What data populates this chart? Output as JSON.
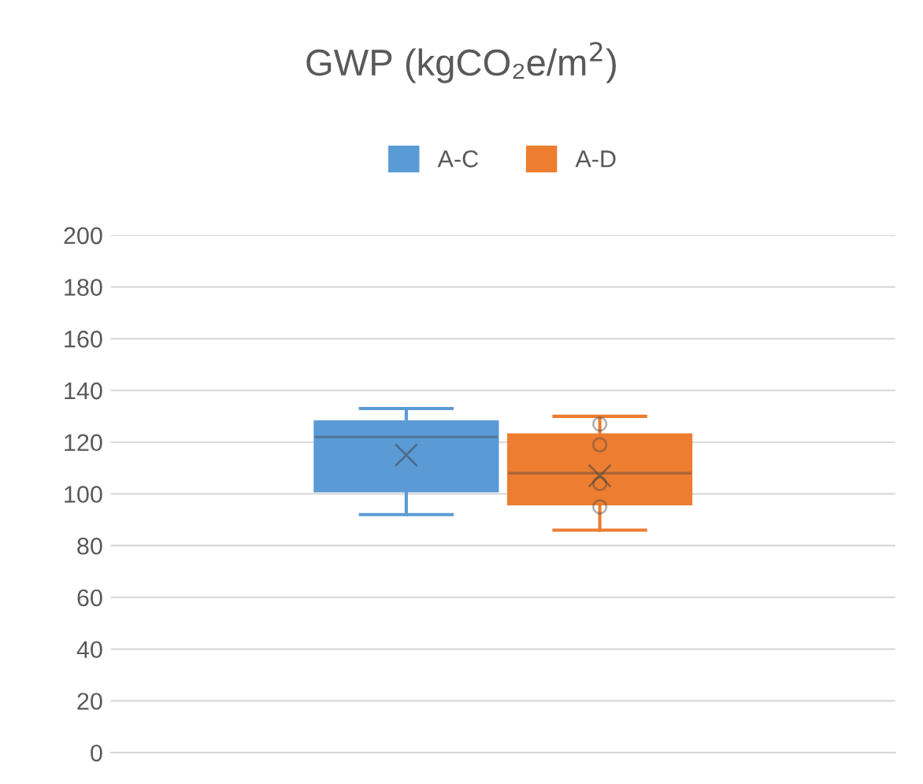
{
  "chart_data": {
    "type": "box",
    "title": "GWP (kgCO₂e/m$^{2}$)",
    "categories": [
      null
    ],
    "series": [
      {
        "name": "A-C",
        "color": "#5b9bd5",
        "boxes": [
          {
            "low": 92,
            "q1": 101,
            "median": 122,
            "q3": 128,
            "high": 133,
            "mean": 115
          }
        ]
      },
      {
        "name": "A-D",
        "color": "#ed7d31",
        "boxes": [
          {
            "low": 86,
            "q1": 96,
            "median": 108,
            "q3": 123,
            "high": 130,
            "mean": 107,
            "outliers": [
              127,
              119,
              104,
              95
            ]
          }
        ]
      }
    ],
    "ylim": [
      0,
      200
    ],
    "yticks": [
      0,
      20,
      40,
      60,
      80,
      100,
      120,
      140,
      160,
      180,
      200
    ],
    "grid": "y",
    "legend": "top"
  }
}
